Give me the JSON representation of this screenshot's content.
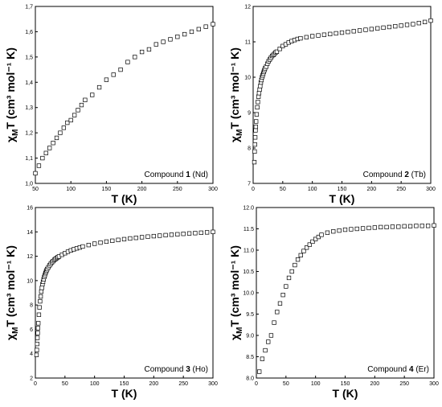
{
  "figure": {
    "panels": [
      {
        "ylabel": {
          "chi": "χ",
          "sub": "M",
          "rest": "T (cm³ mol⁻¹ K)"
        },
        "xlabel": "T (K)",
        "annotation": {
          "prefix": "Compound ",
          "number": "1",
          "suffix": " (Nd)"
        },
        "xticks": [
          "50",
          "100",
          "150",
          "200",
          "250",
          "300"
        ],
        "yticks": [
          "1,0",
          "1,1",
          "1,2",
          "1,3",
          "1,4",
          "1,5",
          "1,6",
          "1,7"
        ]
      },
      {
        "ylabel": {
          "chi": "χ",
          "sub": "M",
          "rest": "T (cm³ mol⁻¹ K)"
        },
        "xlabel": "T (K)",
        "annotation": {
          "prefix": "Compound ",
          "number": "2",
          "suffix": " (Tb)"
        },
        "xticks": [
          "0",
          "50",
          "100",
          "150",
          "200",
          "250",
          "300"
        ],
        "yticks": [
          "7",
          "8",
          "9",
          "10",
          "11",
          "12"
        ]
      },
      {
        "ylabel": {
          "chi": "χ",
          "sub": "M",
          "rest": "T (cm³ mol⁻¹ K)"
        },
        "xlabel": "T (K)",
        "annotation": {
          "prefix": "Compound ",
          "number": "3",
          "suffix": " (Ho)"
        },
        "xticks": [
          "0",
          "50",
          "100",
          "150",
          "200",
          "250",
          "300"
        ],
        "yticks": [
          "2",
          "4",
          "6",
          "8",
          "10",
          "12",
          "14",
          "16"
        ]
      },
      {
        "ylabel": {
          "chi": "χ",
          "sub": "M",
          "rest": "T (cm³ mol⁻¹ K)"
        },
        "xlabel": "T (K)",
        "annotation": {
          "prefix": "Compound ",
          "number": "4",
          "suffix": " (Er)"
        },
        "xticks": [
          "0",
          "50",
          "100",
          "150",
          "200",
          "250",
          "300"
        ],
        "yticks": [
          "8.0",
          "8.5",
          "9.0",
          "9.5",
          "10.0",
          "10.5",
          "11.0",
          "11.5",
          "12.0"
        ]
      }
    ]
  },
  "chart_data": [
    {
      "type": "scatter",
      "title": "",
      "xlabel": "T (K)",
      "ylabel": "χMT (cm³ mol⁻¹ K)",
      "annotation": "Compound 1 (Nd)",
      "xlim": [
        50,
        300
      ],
      "ylim": [
        1.0,
        1.7
      ],
      "marker": "open-square",
      "x": [
        50,
        55,
        60,
        65,
        70,
        75,
        80,
        85,
        90,
        95,
        100,
        105,
        110,
        115,
        120,
        130,
        140,
        150,
        160,
        170,
        180,
        190,
        200,
        210,
        220,
        230,
        240,
        250,
        260,
        270,
        280,
        290,
        300
      ],
      "y": [
        1.04,
        1.07,
        1.1,
        1.12,
        1.14,
        1.16,
        1.18,
        1.2,
        1.22,
        1.24,
        1.25,
        1.27,
        1.29,
        1.31,
        1.33,
        1.35,
        1.38,
        1.41,
        1.43,
        1.45,
        1.48,
        1.5,
        1.52,
        1.53,
        1.55,
        1.56,
        1.57,
        1.58,
        1.59,
        1.6,
        1.61,
        1.62,
        1.63
      ]
    },
    {
      "type": "scatter",
      "title": "",
      "xlabel": "T (K)",
      "ylabel": "χMT (cm³ mol⁻¹ K)",
      "annotation": "Compound 2 (Tb)",
      "xlim": [
        0,
        300
      ],
      "ylim": [
        7,
        12
      ],
      "marker": "open-square",
      "x": [
        2,
        2.5,
        3,
        3.5,
        4,
        4.5,
        5,
        6,
        7,
        8,
        9,
        10,
        11,
        12,
        13,
        14,
        15,
        16,
        17,
        18,
        19,
        20,
        22,
        24,
        26,
        28,
        30,
        32,
        34,
        36,
        38,
        40,
        45,
        50,
        55,
        60,
        65,
        70,
        75,
        80,
        90,
        100,
        110,
        120,
        130,
        140,
        150,
        160,
        170,
        180,
        190,
        200,
        210,
        220,
        230,
        240,
        250,
        260,
        270,
        280,
        290,
        300
      ],
      "y": [
        7.6,
        7.9,
        8.1,
        8.3,
        8.5,
        8.6,
        8.75,
        8.95,
        9.15,
        9.3,
        9.45,
        9.55,
        9.65,
        9.75,
        9.85,
        9.92,
        10.0,
        10.05,
        10.1,
        10.15,
        10.2,
        10.25,
        10.3,
        10.38,
        10.45,
        10.5,
        10.55,
        10.6,
        10.63,
        10.66,
        10.7,
        10.72,
        10.8,
        10.88,
        10.93,
        10.98,
        11.02,
        11.05,
        11.08,
        11.1,
        11.13,
        11.16,
        11.18,
        11.2,
        11.22,
        11.24,
        11.26,
        11.28,
        11.3,
        11.32,
        11.34,
        11.36,
        11.38,
        11.4,
        11.42,
        11.44,
        11.46,
        11.48,
        11.5,
        11.53,
        11.56,
        11.6
      ]
    },
    {
      "type": "scatter",
      "title": "",
      "xlabel": "T (K)",
      "ylabel": "χMT (cm³ mol⁻¹ K)",
      "annotation": "Compound 3 (Ho)",
      "xlim": [
        0,
        300
      ],
      "ylim": [
        2,
        16
      ],
      "marker": "open-square",
      "x": [
        2,
        2.5,
        3,
        3.5,
        4,
        4.5,
        5,
        6,
        7,
        8,
        9,
        10,
        11,
        12,
        13,
        14,
        15,
        16,
        17,
        18,
        19,
        20,
        22,
        24,
        26,
        28,
        30,
        32,
        34,
        36,
        38,
        40,
        45,
        50,
        55,
        60,
        65,
        70,
        75,
        80,
        90,
        100,
        110,
        120,
        130,
        140,
        150,
        160,
        170,
        180,
        190,
        200,
        210,
        220,
        230,
        240,
        250,
        260,
        270,
        280,
        290,
        300
      ],
      "y": [
        3.9,
        4.3,
        4.8,
        5.3,
        5.7,
        6.1,
        6.5,
        7.2,
        7.8,
        8.3,
        8.7,
        9.1,
        9.4,
        9.7,
        9.9,
        10.1,
        10.3,
        10.45,
        10.6,
        10.72,
        10.85,
        10.95,
        11.1,
        11.25,
        11.38,
        11.5,
        11.6,
        11.7,
        11.78,
        11.85,
        11.92,
        11.98,
        12.12,
        12.25,
        12.37,
        12.48,
        12.57,
        12.65,
        12.72,
        12.8,
        12.92,
        13.03,
        13.12,
        13.2,
        13.27,
        13.34,
        13.4,
        13.46,
        13.51,
        13.56,
        13.61,
        13.65,
        13.69,
        13.73,
        13.77,
        13.8,
        13.84,
        13.87,
        13.9,
        13.93,
        13.96,
        14.0
      ]
    },
    {
      "type": "scatter",
      "title": "",
      "xlabel": "T (K)",
      "ylabel": "χMT (cm³ mol⁻¹ K)",
      "annotation": "Compound 4 (Er)",
      "xlim": [
        0,
        300
      ],
      "ylim": [
        8.0,
        12.0
      ],
      "marker": "open-square",
      "x": [
        5,
        10,
        15,
        20,
        25,
        30,
        35,
        40,
        45,
        50,
        55,
        60,
        65,
        70,
        75,
        80,
        85,
        90,
        95,
        100,
        105,
        110,
        120,
        130,
        140,
        150,
        160,
        170,
        180,
        190,
        200,
        210,
        220,
        230,
        240,
        250,
        260,
        270,
        280,
        290,
        300
      ],
      "y": [
        8.15,
        8.45,
        8.65,
        8.85,
        9.0,
        9.3,
        9.55,
        9.75,
        9.95,
        10.15,
        10.35,
        10.5,
        10.65,
        10.78,
        10.88,
        10.98,
        11.06,
        11.13,
        11.2,
        11.26,
        11.31,
        11.36,
        11.41,
        11.44,
        11.46,
        11.48,
        11.49,
        11.5,
        11.51,
        11.52,
        11.53,
        11.54,
        11.54,
        11.55,
        11.55,
        11.56,
        11.56,
        11.57,
        11.57,
        11.57,
        11.58
      ]
    }
  ]
}
